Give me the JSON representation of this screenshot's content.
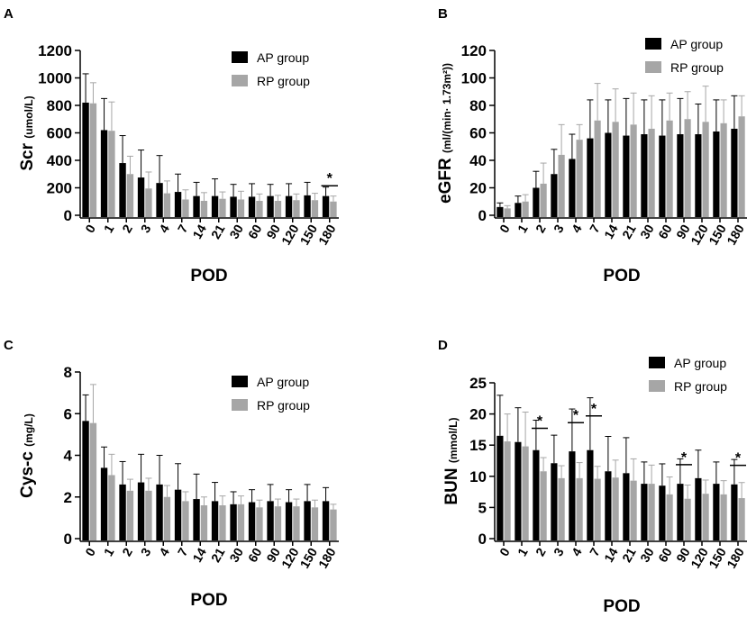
{
  "colors": {
    "ap": "#000000",
    "rp": "#a6a6a6",
    "axis": "#000000"
  },
  "chart_data": [
    {
      "panel": "A",
      "type": "bar",
      "ylabel_main": "Scr",
      "ylabel_unit": "(umol/L)",
      "xlabel": "POD",
      "ylim": [
        0,
        1200
      ],
      "yticks": [
        0,
        200,
        400,
        600,
        800,
        1000,
        1200
      ],
      "categories": [
        "0",
        "1",
        "2",
        "3",
        "4",
        "7",
        "14",
        "21",
        "30",
        "60",
        "90",
        "120",
        "150",
        "180"
      ],
      "series": [
        {
          "name": "AP group",
          "values": [
            820,
            620,
            380,
            275,
            235,
            170,
            140,
            140,
            135,
            135,
            140,
            140,
            145,
            140
          ],
          "errors": [
            210,
            230,
            200,
            200,
            200,
            130,
            100,
            125,
            90,
            95,
            85,
            90,
            95,
            65
          ]
        },
        {
          "name": "RP group",
          "values": [
            815,
            615,
            300,
            195,
            160,
            115,
            105,
            120,
            115,
            105,
            105,
            110,
            110,
            100
          ],
          "errors": [
            150,
            210,
            130,
            120,
            90,
            70,
            60,
            50,
            60,
            50,
            40,
            45,
            50,
            40
          ]
        }
      ],
      "significance": [
        {
          "category": "180",
          "label": "*"
        }
      ],
      "legend": [
        "AP group",
        "RP group"
      ]
    },
    {
      "panel": "B",
      "type": "bar",
      "ylabel_main": "eGFR",
      "ylabel_unit": "(ml/(min· 1.73m²))",
      "xlabel": "POD",
      "ylim": [
        0,
        120
      ],
      "yticks": [
        0,
        20,
        40,
        60,
        80,
        100,
        120
      ],
      "categories": [
        "0",
        "1",
        "2",
        "3",
        "4",
        "7",
        "14",
        "21",
        "30",
        "60",
        "90",
        "120",
        "150",
        "180"
      ],
      "series": [
        {
          "name": "AP group",
          "values": [
            6,
            9,
            20,
            30,
            41,
            56,
            60,
            58,
            59,
            58,
            59,
            59,
            61,
            63
          ],
          "errors": [
            3,
            5,
            12,
            18,
            18,
            28,
            24,
            27,
            25,
            26,
            26,
            22,
            23,
            24
          ]
        },
        {
          "name": "RP group",
          "values": [
            5,
            10,
            23,
            44,
            55,
            69,
            68,
            66,
            63,
            69,
            70,
            68,
            67,
            72
          ],
          "errors": [
            2,
            5,
            15,
            22,
            11,
            27,
            24,
            23,
            24,
            20,
            20,
            26,
            17,
            15
          ]
        }
      ],
      "significance": [],
      "legend": [
        "AP group",
        "RP group"
      ]
    },
    {
      "panel": "C",
      "type": "bar",
      "ylabel_main": "Cys-c",
      "ylabel_unit": "(mg/L)",
      "xlabel": "POD",
      "ylim": [
        0,
        8
      ],
      "yticks": [
        0,
        2,
        4,
        6,
        8
      ],
      "categories": [
        "0",
        "1",
        "2",
        "3",
        "4",
        "7",
        "14",
        "21",
        "30",
        "60",
        "90",
        "120",
        "150",
        "180"
      ],
      "series": [
        {
          "name": "AP group",
          "values": [
            5.65,
            3.4,
            2.6,
            2.7,
            2.6,
            2.35,
            1.9,
            1.8,
            1.65,
            1.75,
            1.8,
            1.75,
            1.8,
            1.8
          ],
          "errors": [
            1.25,
            1.0,
            1.1,
            1.35,
            1.4,
            1.25,
            1.2,
            0.9,
            0.6,
            0.6,
            0.8,
            0.6,
            0.8,
            0.65
          ]
        },
        {
          "name": "RP group",
          "values": [
            5.55,
            3.05,
            2.3,
            2.3,
            2.0,
            1.8,
            1.6,
            1.6,
            1.65,
            1.5,
            1.55,
            1.55,
            1.5,
            1.4
          ],
          "errors": [
            1.85,
            1.0,
            0.55,
            0.6,
            0.55,
            0.45,
            0.4,
            0.45,
            0.4,
            0.35,
            0.35,
            0.35,
            0.35,
            0.25
          ]
        }
      ],
      "significance": [],
      "legend": [
        "AP group",
        "RP group"
      ]
    },
    {
      "panel": "D",
      "type": "bar",
      "ylabel_main": "BUN",
      "ylabel_unit": "(mmol/L)",
      "xlabel": "POD",
      "ylim": [
        0,
        25
      ],
      "yticks": [
        0,
        5,
        10,
        15,
        20,
        25
      ],
      "categories": [
        "0",
        "1",
        "2",
        "3",
        "4",
        "7",
        "14",
        "21",
        "30",
        "60",
        "90",
        "120",
        "150",
        "180"
      ],
      "series": [
        {
          "name": "AP group",
          "values": [
            16.5,
            15.5,
            14.2,
            12.1,
            14.0,
            14.2,
            10.8,
            10.5,
            8.8,
            8.5,
            8.8,
            9.7,
            8.8,
            8.7
          ],
          "errors": [
            6.5,
            5.5,
            4.8,
            4.5,
            6.8,
            8.4,
            5.6,
            5.7,
            3.5,
            3.5,
            4.0,
            4.5,
            3.5,
            4.0
          ]
        },
        {
          "name": "RP group",
          "values": [
            15.6,
            14.8,
            10.8,
            9.7,
            9.7,
            9.6,
            9.8,
            9.3,
            8.8,
            7.1,
            6.4,
            7.2,
            7.1,
            6.5
          ],
          "errors": [
            4.4,
            5.5,
            2.2,
            2.0,
            2.5,
            2.0,
            2.8,
            3.5,
            3.0,
            2.8,
            2.2,
            2.2,
            2.2,
            2.5
          ]
        }
      ],
      "significance": [
        {
          "category": "2",
          "label": "*"
        },
        {
          "category": "4",
          "label": "*"
        },
        {
          "category": "7",
          "label": "*"
        },
        {
          "category": "90",
          "label": "*"
        },
        {
          "category": "180",
          "label": "*"
        }
      ],
      "legend": [
        "AP group",
        "RP group"
      ]
    }
  ]
}
